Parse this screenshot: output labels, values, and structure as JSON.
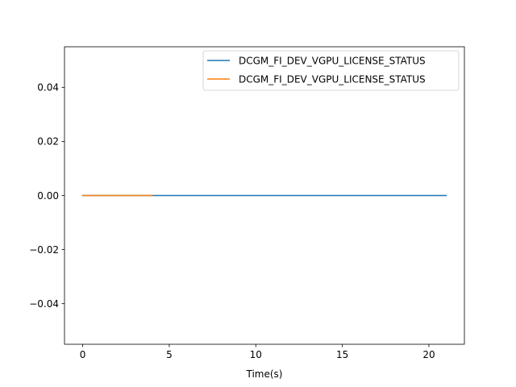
{
  "chart_data": {
    "type": "line",
    "title": "",
    "xlabel": "Time(s)",
    "ylabel": "",
    "xlim": [
      -1.05,
      22.05
    ],
    "ylim": [
      -0.055,
      0.055
    ],
    "xticks": [
      0,
      5,
      10,
      15,
      20
    ],
    "xtick_labels": [
      "0",
      "5",
      "10",
      "15",
      "20"
    ],
    "yticks": [
      -0.04,
      -0.02,
      0.0,
      0.02,
      0.04
    ],
    "ytick_labels": [
      "−0.04",
      "−0.02",
      "0.00",
      "0.02",
      "0.04"
    ],
    "grid": false,
    "legend_position": "top-right",
    "series": [
      {
        "name": "DCGM_FI_DEV_VGPU_LICENSE_STATUS",
        "color": "#1f77b4",
        "x": [
          0,
          21
        ],
        "y": [
          0,
          0
        ]
      },
      {
        "name": "DCGM_FI_DEV_VGPU_LICENSE_STATUS",
        "color": "#ff7f0e",
        "x": [
          0,
          4
        ],
        "y": [
          0,
          0
        ]
      }
    ]
  }
}
